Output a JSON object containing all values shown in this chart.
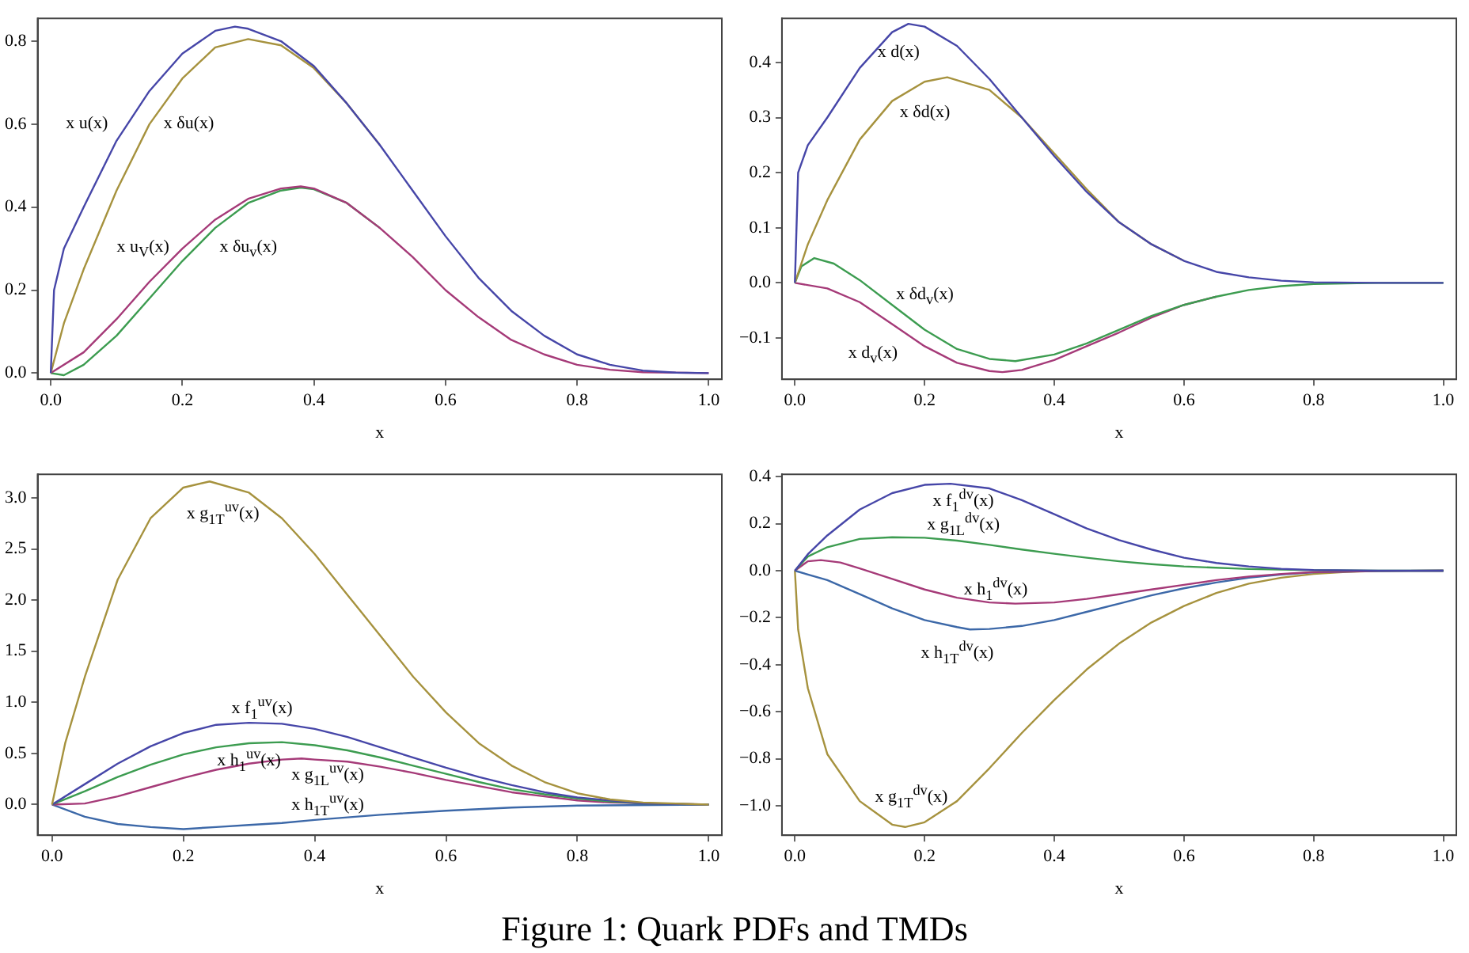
{
  "chart_data": [
    {
      "type": "line",
      "xlabel": "x",
      "xlim": [
        -0.02,
        1.02
      ],
      "ylim": [
        -0.015,
        0.855
      ],
      "legend": false,
      "grid": false,
      "xticks": [
        {
          "value": 0,
          "label": "0.0"
        },
        {
          "value": 0.2,
          "label": "0.2"
        },
        {
          "value": 0.4,
          "label": "0.4"
        },
        {
          "value": 0.6,
          "label": "0.6"
        },
        {
          "value": 0.8,
          "label": "0.8"
        },
        {
          "value": 1,
          "label": "1.0"
        }
      ],
      "yticks": [
        {
          "value": 0,
          "label": "0.0"
        },
        {
          "value": 0.2,
          "label": "0.2"
        },
        {
          "value": 0.4,
          "label": "0.4"
        },
        {
          "value": 0.6,
          "label": "0.6"
        },
        {
          "value": 0.8,
          "label": "0.8"
        }
      ],
      "series": [
        {
          "name": "x u(x)",
          "color": "#4646a8",
          "x": [
            0,
            0.005,
            0.02,
            0.05,
            0.1,
            0.15,
            0.2,
            0.25,
            0.28,
            0.3,
            0.35,
            0.4,
            0.45,
            0.5,
            0.55,
            0.6,
            0.65,
            0.7,
            0.75,
            0.8,
            0.85,
            0.9,
            0.95,
            1
          ],
          "values": [
            0,
            0.2,
            0.3,
            0.4,
            0.56,
            0.68,
            0.77,
            0.825,
            0.835,
            0.83,
            0.8,
            0.74,
            0.65,
            0.55,
            0.44,
            0.33,
            0.23,
            0.15,
            0.09,
            0.045,
            0.02,
            0.006,
            0.001,
            0
          ]
        },
        {
          "name": "x δu(x)",
          "color": "#a6923e",
          "x": [
            0,
            0.02,
            0.05,
            0.1,
            0.15,
            0.2,
            0.25,
            0.3,
            0.35,
            0.4,
            0.45,
            0.5
          ],
          "values": [
            0,
            0.12,
            0.25,
            0.44,
            0.6,
            0.71,
            0.785,
            0.805,
            0.79,
            0.735,
            0.65,
            0.55
          ]
        },
        {
          "name": "x u$_{V}$(x)",
          "color": "#a53a78",
          "x": [
            0,
            0.05,
            0.1,
            0.15,
            0.2,
            0.25,
            0.3,
            0.35,
            0.38,
            0.4,
            0.45,
            0.5,
            0.55,
            0.6,
            0.65,
            0.7,
            0.75,
            0.8,
            0.85,
            0.9,
            1
          ],
          "values": [
            0,
            0.05,
            0.13,
            0.22,
            0.3,
            0.37,
            0.42,
            0.445,
            0.45,
            0.445,
            0.41,
            0.35,
            0.28,
            0.2,
            0.135,
            0.08,
            0.045,
            0.02,
            0.008,
            0.002,
            0
          ]
        },
        {
          "name": "x δu$_{v}$(x)",
          "color": "#3c9c50",
          "x": [
            0,
            0.02,
            0.05,
            0.1,
            0.15,
            0.2,
            0.25,
            0.3,
            0.35,
            0.38,
            0.4,
            0.45,
            0.5
          ],
          "values": [
            0,
            -0.005,
            0.02,
            0.09,
            0.18,
            0.27,
            0.35,
            0.41,
            0.44,
            0.447,
            0.443,
            0.41,
            0.35
          ]
        }
      ]
    },
    {
      "type": "line",
      "xlabel": "x",
      "xlim": [
        -0.02,
        1.02
      ],
      "ylim": [
        -0.175,
        0.48
      ],
      "legend": false,
      "grid": false,
      "xticks": [
        {
          "value": 0,
          "label": "0.0"
        },
        {
          "value": 0.2,
          "label": "0.2"
        },
        {
          "value": 0.4,
          "label": "0.4"
        },
        {
          "value": 0.6,
          "label": "0.6"
        },
        {
          "value": 0.8,
          "label": "0.8"
        },
        {
          "value": 1,
          "label": "1.0"
        }
      ],
      "yticks": [
        {
          "value": -0.1,
          "label": "−0.1"
        },
        {
          "value": 0,
          "label": "0.0"
        },
        {
          "value": 0.1,
          "label": "0.1"
        },
        {
          "value": 0.2,
          "label": "0.2"
        },
        {
          "value": 0.3,
          "label": "0.3"
        },
        {
          "value": 0.4,
          "label": "0.4"
        }
      ],
      "series": [
        {
          "name": "x d(x)",
          "color": "#4646a8",
          "x": [
            0,
            0.005,
            0.02,
            0.05,
            0.1,
            0.15,
            0.175,
            0.2,
            0.25,
            0.3,
            0.35,
            0.4,
            0.45,
            0.5,
            0.55,
            0.6,
            0.65,
            0.7,
            0.75,
            0.8,
            0.9,
            1
          ],
          "values": [
            0,
            0.2,
            0.25,
            0.3,
            0.39,
            0.455,
            0.47,
            0.465,
            0.43,
            0.37,
            0.3,
            0.23,
            0.165,
            0.11,
            0.07,
            0.04,
            0.02,
            0.01,
            0.004,
            0.001,
            0,
            0
          ]
        },
        {
          "name": "x δd(x)",
          "color": "#a6923e",
          "x": [
            0,
            0.02,
            0.05,
            0.1,
            0.15,
            0.2,
            0.235,
            0.3,
            0.35,
            0.4,
            0.45,
            0.5,
            0.55,
            0.6
          ],
          "values": [
            0,
            0.07,
            0.15,
            0.26,
            0.33,
            0.365,
            0.373,
            0.35,
            0.3,
            0.235,
            0.17,
            0.11,
            0.07,
            0.04
          ]
        },
        {
          "name": "x δd$_{v}$(x)",
          "color": "#3c9c50",
          "x": [
            0,
            0.01,
            0.03,
            0.06,
            0.1,
            0.15,
            0.2,
            0.25,
            0.3,
            0.34,
            0.4,
            0.45,
            0.5,
            0.55,
            0.6,
            0.65,
            0.7,
            0.75,
            0.8,
            0.9,
            1
          ],
          "values": [
            0,
            0.03,
            0.045,
            0.035,
            0.005,
            -0.04,
            -0.085,
            -0.12,
            -0.138,
            -0.142,
            -0.13,
            -0.11,
            -0.085,
            -0.06,
            -0.04,
            -0.025,
            -0.013,
            -0.006,
            -0.002,
            0,
            0
          ]
        },
        {
          "name": "x d$_{v}$(x)",
          "color": "#a53a78",
          "x": [
            0,
            0.05,
            0.1,
            0.15,
            0.2,
            0.25,
            0.3,
            0.32,
            0.35,
            0.4,
            0.45,
            0.5,
            0.55,
            0.6,
            0.65
          ],
          "values": [
            0,
            -0.01,
            -0.035,
            -0.075,
            -0.115,
            -0.145,
            -0.16,
            -0.162,
            -0.158,
            -0.14,
            -0.115,
            -0.09,
            -0.063,
            -0.04,
            -0.025
          ]
        }
      ]
    },
    {
      "type": "line",
      "xlabel": "x",
      "xlim": [
        -0.022,
        1.02
      ],
      "ylim": [
        -0.3,
        3.23
      ],
      "legend": false,
      "grid": false,
      "xticks": [
        {
          "value": 0,
          "label": "0.0"
        },
        {
          "value": 0.2,
          "label": "0.2"
        },
        {
          "value": 0.4,
          "label": "0.4"
        },
        {
          "value": 0.6,
          "label": "0.6"
        },
        {
          "value": 0.8,
          "label": "0.8"
        },
        {
          "value": 1,
          "label": "1.0"
        }
      ],
      "yticks": [
        {
          "value": 0,
          "label": "0.0"
        },
        {
          "value": 0.5,
          "label": "0.5"
        },
        {
          "value": 1,
          "label": "1.0"
        },
        {
          "value": 1.5,
          "label": "1.5"
        },
        {
          "value": 2,
          "label": "2.0"
        },
        {
          "value": 2.5,
          "label": "2.5"
        },
        {
          "value": 3,
          "label": "3.0"
        }
      ],
      "series": [
        {
          "name": "x g$_{1T}$$^{uv}$(x)",
          "color": "#a6923e",
          "x": [
            0,
            0.02,
            0.05,
            0.1,
            0.15,
            0.2,
            0.24,
            0.3,
            0.35,
            0.4,
            0.45,
            0.5,
            0.55,
            0.6,
            0.65,
            0.7,
            0.75,
            0.8,
            0.85,
            0.9,
            1
          ],
          "values": [
            0,
            0.6,
            1.25,
            2.2,
            2.8,
            3.1,
            3.16,
            3.05,
            2.8,
            2.45,
            2.05,
            1.65,
            1.25,
            0.9,
            0.6,
            0.38,
            0.22,
            0.11,
            0.05,
            0.02,
            0
          ]
        },
        {
          "name": "x f$_{1}$$^{uv}$(x)",
          "color": "#4646a8",
          "x": [
            0,
            0.05,
            0.1,
            0.15,
            0.2,
            0.25,
            0.3,
            0.35,
            0.4,
            0.45,
            0.5,
            0.55,
            0.6,
            0.65,
            0.7,
            0.75,
            0.8,
            0.85,
            0.9,
            1
          ],
          "values": [
            0,
            0.2,
            0.4,
            0.57,
            0.7,
            0.78,
            0.8,
            0.79,
            0.74,
            0.66,
            0.56,
            0.46,
            0.36,
            0.27,
            0.19,
            0.12,
            0.07,
            0.04,
            0.01,
            0
          ]
        },
        {
          "name": "x h$_{1}$$^{uv}$(x)",
          "color": "#3c9c50",
          "x": [
            0,
            0.05,
            0.1,
            0.15,
            0.2,
            0.25,
            0.3,
            0.35,
            0.4,
            0.45,
            0.5,
            0.55,
            0.6,
            0.65,
            0.7,
            0.75,
            0.8,
            0.85,
            0.9,
            1
          ],
          "values": [
            0,
            0.13,
            0.27,
            0.39,
            0.49,
            0.56,
            0.6,
            0.61,
            0.58,
            0.53,
            0.46,
            0.38,
            0.3,
            0.22,
            0.15,
            0.1,
            0.06,
            0.03,
            0.01,
            0
          ]
        },
        {
          "name": "x g$_{1L}$$^{uv}$(x)",
          "color": "#a53a78",
          "x": [
            0,
            0.05,
            0.1,
            0.15,
            0.2,
            0.25,
            0.3,
            0.35,
            0.38,
            0.4,
            0.45,
            0.5,
            0.55,
            0.6,
            0.65,
            0.7,
            0.75,
            0.8,
            0.85,
            1
          ],
          "values": [
            0,
            0.01,
            0.08,
            0.17,
            0.26,
            0.34,
            0.4,
            0.44,
            0.45,
            0.44,
            0.42,
            0.37,
            0.31,
            0.24,
            0.18,
            0.12,
            0.08,
            0.04,
            0.02,
            0
          ]
        },
        {
          "name": "x h$_{1T}$$^{uv}$(x)",
          "color": "#3c68a8",
          "x": [
            0,
            0.05,
            0.1,
            0.15,
            0.2,
            0.25,
            0.3,
            0.35,
            0.4,
            0.5,
            0.6,
            0.7,
            0.8,
            1
          ],
          "values": [
            0,
            -0.12,
            -0.19,
            -0.22,
            -0.24,
            -0.22,
            -0.2,
            -0.18,
            -0.15,
            -0.1,
            -0.06,
            -0.03,
            -0.01,
            0
          ]
        }
      ]
    },
    {
      "type": "line",
      "xlabel": "x",
      "xlim": [
        -0.02,
        1.02
      ],
      "ylim": [
        -1.125,
        0.41
      ],
      "legend": false,
      "grid": false,
      "xticks": [
        {
          "value": 0,
          "label": "0.0"
        },
        {
          "value": 0.2,
          "label": "0.2"
        },
        {
          "value": 0.4,
          "label": "0.4"
        },
        {
          "value": 0.6,
          "label": "0.6"
        },
        {
          "value": 0.8,
          "label": "0.8"
        },
        {
          "value": 1,
          "label": "1.0"
        }
      ],
      "yticks": [
        {
          "value": -1,
          "label": "−1.0"
        },
        {
          "value": -0.8,
          "label": "−0.8"
        },
        {
          "value": -0.6,
          "label": "−0.6"
        },
        {
          "value": -0.4,
          "label": "−0.4"
        },
        {
          "value": -0.2,
          "label": "−0.2"
        },
        {
          "value": 0,
          "label": "0.0"
        },
        {
          "value": 0.2,
          "label": "0.2"
        },
        {
          "value": 0.4,
          "label": "0.4"
        }
      ],
      "series": [
        {
          "name": "x f$_{1}$$^{dv}$(x)",
          "color": "#4646a8",
          "x": [
            0,
            0.02,
            0.05,
            0.1,
            0.15,
            0.2,
            0.24,
            0.3,
            0.35,
            0.4,
            0.45,
            0.5,
            0.55,
            0.6,
            0.65,
            0.7,
            0.75,
            0.8,
            0.9,
            1
          ],
          "values": [
            0,
            0.07,
            0.15,
            0.26,
            0.33,
            0.365,
            0.37,
            0.35,
            0.3,
            0.24,
            0.18,
            0.13,
            0.09,
            0.055,
            0.033,
            0.018,
            0.008,
            0.003,
            0,
            0
          ]
        },
        {
          "name": "x g$_{1L}$$^{dv}$(x)",
          "color": "#3c9c50",
          "x": [
            0,
            0.02,
            0.05,
            0.1,
            0.15,
            0.2,
            0.25,
            0.3,
            0.35,
            0.4,
            0.45,
            0.5,
            0.55,
            0.6,
            0.7,
            0.8,
            0.9,
            1
          ],
          "values": [
            0,
            0.06,
            0.1,
            0.135,
            0.142,
            0.14,
            0.128,
            0.11,
            0.09,
            0.072,
            0.055,
            0.04,
            0.028,
            0.018,
            0.007,
            0.002,
            0,
            0
          ]
        },
        {
          "name": "x h$_{1}$$^{dv}$(x)",
          "color": "#a53a78",
          "x": [
            0,
            0.02,
            0.04,
            0.07,
            0.1,
            0.15,
            0.2,
            0.25,
            0.3,
            0.34,
            0.4,
            0.45,
            0.5,
            0.55,
            0.6,
            0.65,
            0.7,
            0.75,
            0.8,
            0.9,
            1
          ],
          "values": [
            0,
            0.04,
            0.045,
            0.035,
            0.01,
            -0.035,
            -0.08,
            -0.115,
            -0.135,
            -0.14,
            -0.135,
            -0.12,
            -0.1,
            -0.08,
            -0.06,
            -0.04,
            -0.025,
            -0.014,
            -0.006,
            -0.001,
            0
          ]
        },
        {
          "name": "x h$_{1T}$$^{dv}$(x)",
          "color": "#3c68a8",
          "x": [
            0,
            0.05,
            0.1,
            0.15,
            0.2,
            0.25,
            0.27,
            0.3,
            0.35,
            0.4,
            0.45,
            0.5,
            0.55,
            0.6,
            0.65,
            0.7,
            0.75,
            0.8,
            0.9,
            1
          ],
          "values": [
            0,
            -0.04,
            -0.1,
            -0.16,
            -0.21,
            -0.24,
            -0.25,
            -0.248,
            -0.235,
            -0.21,
            -0.175,
            -0.14,
            -0.105,
            -0.075,
            -0.05,
            -0.03,
            -0.016,
            -0.007,
            -0.001,
            0
          ]
        },
        {
          "name": "x g$_{1T}$$^{dv}$(x)",
          "color": "#a6923e",
          "x": [
            0,
            0.005,
            0.02,
            0.05,
            0.1,
            0.15,
            0.17,
            0.2,
            0.25,
            0.3,
            0.35,
            0.4,
            0.45,
            0.5,
            0.55,
            0.6,
            0.65,
            0.7,
            0.75,
            0.8,
            0.85,
            0.9,
            1
          ],
          "values": [
            0,
            -0.25,
            -0.5,
            -0.78,
            -0.98,
            -1.08,
            -1.09,
            -1.07,
            -0.98,
            -0.84,
            -0.69,
            -0.55,
            -0.42,
            -0.31,
            -0.22,
            -0.15,
            -0.095,
            -0.055,
            -0.03,
            -0.014,
            -0.005,
            -0.001,
            0
          ]
        }
      ],
      "annotations": [
        "Figure 1: Quark PDFs and TMDs"
      ]
    }
  ]
}
